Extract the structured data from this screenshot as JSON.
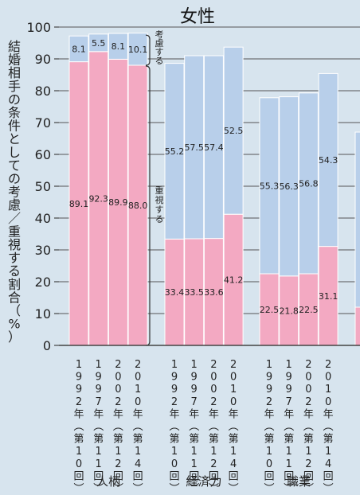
{
  "chart_data": {
    "type": "bar",
    "stacked": true,
    "title": "女性",
    "ylabel": "結婚相手の条件としての考慮／重視する割合（%）",
    "ylim": [
      0,
      100
    ],
    "yticks": [
      "0",
      "10",
      "20",
      "30",
      "40",
      "50",
      "60",
      "70",
      "80",
      "90",
      "100"
    ],
    "grid": true,
    "colors": {
      "juushi": "#f3a9c2",
      "kouryo": "#b8cfea",
      "background": "#d7e4ee"
    },
    "annotations": {
      "top": "考慮する",
      "bottom": "重視する"
    },
    "groups": [
      {
        "name": "人柄",
        "categories": [
          "1992年（第10回）",
          "1997年（第11回）",
          "2002年（第12回）",
          "2010年（第14回）"
        ],
        "juushi": [
          89.1,
          92.3,
          89.9,
          88.0
        ],
        "kouryo": [
          8.1,
          5.5,
          8.1,
          10.1
        ],
        "juushi_labels": [
          "89.1",
          "92.3",
          "89.9",
          "88.0"
        ],
        "kouryo_labels": [
          "8.1",
          "5.5",
          "8.1",
          "10.1"
        ]
      },
      {
        "name": "経済力",
        "categories": [
          "1992年（第10回）",
          "1997年（第11回）",
          "2002年（第12回）",
          "2010年（第14回）"
        ],
        "juushi": [
          33.4,
          33.5,
          33.6,
          41.2
        ],
        "kouryo": [
          55.2,
          57.5,
          57.4,
          52.5
        ],
        "juushi_labels": [
          "33.4",
          "33.5",
          "33.6",
          "41.2"
        ],
        "kouryo_labels": [
          "55.2",
          "57.5",
          "57.4",
          "52.5"
        ]
      },
      {
        "name": "職業",
        "categories": [
          "1992年（第10回）",
          "1997年（第11回）",
          "2002年（第12回）",
          "2010年（第14回）"
        ],
        "juushi": [
          22.5,
          21.8,
          22.5,
          31.1
        ],
        "kouryo": [
          55.3,
          56.3,
          56.8,
          54.3
        ],
        "juushi_labels": [
          "22.5",
          "21.8",
          "22.5",
          "31.1"
        ],
        "kouryo_labels": [
          "55.3",
          "56.3",
          "56.8",
          "54.3"
        ]
      },
      {
        "name": "",
        "categories": [],
        "juushi": [
          12
        ],
        "kouryo": [
          55
        ],
        "juushi_labels": [],
        "kouryo_labels": []
      }
    ]
  }
}
